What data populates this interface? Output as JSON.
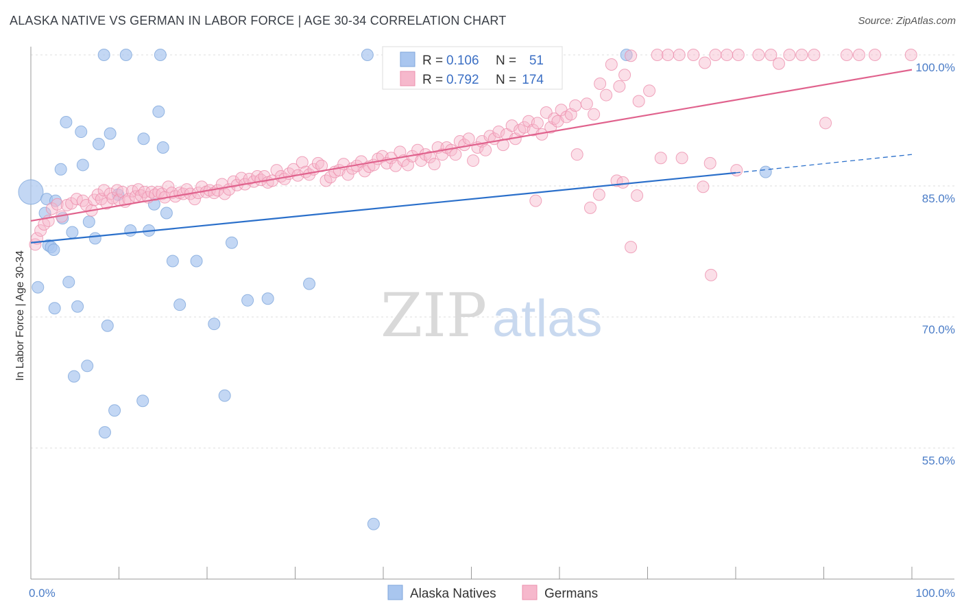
{
  "header": {
    "title": "ALASKA NATIVE VS GERMAN IN LABOR FORCE | AGE 30-34 CORRELATION CHART",
    "source": "Source: ZipAtlas.com"
  },
  "watermark": {
    "zip": "ZIP",
    "atlas": "atlas"
  },
  "chart_data": {
    "type": "scatter",
    "ylabel": "In Labor Force | Age 30-34",
    "xlim": [
      0,
      100
    ],
    "ylim": [
      41,
      101
    ],
    "x_tick_labels": [
      {
        "value": 0,
        "label": "0.0%"
      },
      {
        "value": 100,
        "label": "100.0%"
      }
    ],
    "y_tick_labels": [
      {
        "value": 100,
        "label": "100.0%"
      },
      {
        "value": 85,
        "label": "85.0%"
      },
      {
        "value": 70,
        "label": "70.0%"
      },
      {
        "value": 55,
        "label": "55.0%"
      }
    ],
    "grid": true,
    "legend_top": [
      {
        "r_label": "R =",
        "r_value": "0.106",
        "n_label": "N =",
        "n_value": "51",
        "color": "#a9c6ef"
      },
      {
        "r_label": "R =",
        "r_value": "0.792",
        "n_label": "N =",
        "n_value": "174",
        "color": "#f6b8cc"
      }
    ],
    "legend_bottom": [
      {
        "label": "Alaska Natives",
        "color": "#a9c6ef"
      },
      {
        "label": "Germans",
        "color": "#f6b8cc"
      }
    ],
    "series": [
      {
        "name": "Alaska Natives",
        "color": "#a9c6ef",
        "stroke": "#7ea6db",
        "trend": {
          "x0": 0,
          "y0": 78.5,
          "x1": 80,
          "y1": 86.5,
          "x_dash_end": 100,
          "y_dash_end": 88.6,
          "color": "#2a6fca"
        },
        "points": [
          [
            0,
            84.3
          ],
          [
            0.8,
            73.4
          ],
          [
            1.6,
            81.9
          ],
          [
            1.8,
            83.5
          ],
          [
            2,
            78.2
          ],
          [
            2.3,
            78
          ],
          [
            2.6,
            77.7
          ],
          [
            2.7,
            71
          ],
          [
            2.8,
            83.3
          ],
          [
            3.4,
            86.9
          ],
          [
            3.6,
            81.3
          ],
          [
            4,
            92.3
          ],
          [
            4.3,
            74
          ],
          [
            4.7,
            79.7
          ],
          [
            4.9,
            63.2
          ],
          [
            5.3,
            71.2
          ],
          [
            5.7,
            91.2
          ],
          [
            5.9,
            87.4
          ],
          [
            6.4,
            64.4
          ],
          [
            6.6,
            80.9
          ],
          [
            7.3,
            79
          ],
          [
            7.7,
            89.8
          ],
          [
            8.3,
            100
          ],
          [
            8.4,
            56.8
          ],
          [
            8.7,
            69
          ],
          [
            9,
            91
          ],
          [
            9.5,
            59.3
          ],
          [
            9.9,
            84
          ],
          [
            10.8,
            100
          ],
          [
            11.3,
            79.9
          ],
          [
            12.7,
            60.4
          ],
          [
            12.8,
            90.4
          ],
          [
            13.4,
            79.9
          ],
          [
            14,
            82.9
          ],
          [
            14.5,
            93.5
          ],
          [
            14.7,
            100
          ],
          [
            15,
            89.4
          ],
          [
            15.4,
            81.9
          ],
          [
            16.1,
            76.4
          ],
          [
            16.9,
            71.4
          ],
          [
            18.8,
            76.4
          ],
          [
            20.8,
            69.2
          ],
          [
            22,
            61
          ],
          [
            22.8,
            78.5
          ],
          [
            24.6,
            71.9
          ],
          [
            26.9,
            72.1
          ],
          [
            31.6,
            73.8
          ],
          [
            38.2,
            100
          ],
          [
            38.9,
            46.3
          ],
          [
            67.6,
            100
          ],
          [
            83.4,
            86.6
          ]
        ]
      },
      {
        "name": "Germans",
        "color": "#f6b8cc",
        "stroke": "#ec8fad",
        "trend": {
          "x0": 0,
          "y0": 81,
          "x1": 100,
          "y1": 98.3,
          "color": "#e0628d"
        },
        "points": [
          [
            0.5,
            78.3
          ],
          [
            0.7,
            79
          ],
          [
            1.1,
            79.9
          ],
          [
            1.5,
            80.6
          ],
          [
            2,
            81
          ],
          [
            2.4,
            82.4
          ],
          [
            3,
            82.9
          ],
          [
            3.5,
            81.5
          ],
          [
            4.1,
            82.8
          ],
          [
            4.6,
            83
          ],
          [
            5.2,
            83.5
          ],
          [
            5.9,
            83.3
          ],
          [
            6.3,
            82.8
          ],
          [
            6.9,
            82.2
          ],
          [
            7.2,
            83.4
          ],
          [
            7.6,
            84
          ],
          [
            8,
            83.5
          ],
          [
            8.3,
            84.5
          ],
          [
            8.6,
            83
          ],
          [
            9,
            84.1
          ],
          [
            9.3,
            83.6
          ],
          [
            9.8,
            84.5
          ],
          [
            10,
            83.4
          ],
          [
            10.4,
            84.3
          ],
          [
            10.7,
            83.2
          ],
          [
            11.1,
            83.5
          ],
          [
            11.5,
            84.4
          ],
          [
            11.9,
            83.8
          ],
          [
            12.2,
            84.6
          ],
          [
            12.5,
            83.9
          ],
          [
            12.9,
            84.3
          ],
          [
            13.3,
            83.7
          ],
          [
            13.7,
            84.3
          ],
          [
            14.1,
            84
          ],
          [
            14.5,
            84.3
          ],
          [
            14.9,
            84.1
          ],
          [
            15.2,
            83.7
          ],
          [
            15.6,
            84.9
          ],
          [
            16,
            84.2
          ],
          [
            16.4,
            83.8
          ],
          [
            16.9,
            84.2
          ],
          [
            17.3,
            84.1
          ],
          [
            17.7,
            84.6
          ],
          [
            18.1,
            84.1
          ],
          [
            18.6,
            83.5
          ],
          [
            19,
            84.2
          ],
          [
            19.4,
            84.9
          ],
          [
            19.9,
            84.3
          ],
          [
            20.3,
            84.5
          ],
          [
            20.8,
            84.2
          ],
          [
            21.2,
            84.5
          ],
          [
            21.7,
            85.2
          ],
          [
            22,
            84.1
          ],
          [
            22.5,
            84.6
          ],
          [
            23,
            85.5
          ],
          [
            23.4,
            85.1
          ],
          [
            23.9,
            85.9
          ],
          [
            24.3,
            85.2
          ],
          [
            24.8,
            85.8
          ],
          [
            25.3,
            85.5
          ],
          [
            25.7,
            86.1
          ],
          [
            26.1,
            85.7
          ],
          [
            26.5,
            86.1
          ],
          [
            26.9,
            85.4
          ],
          [
            27.4,
            85.6
          ],
          [
            27.9,
            86.8
          ],
          [
            28.4,
            86.1
          ],
          [
            28.8,
            85.8
          ],
          [
            29.3,
            86.4
          ],
          [
            29.8,
            86.9
          ],
          [
            30.3,
            86.2
          ],
          [
            30.8,
            87.7
          ],
          [
            31.2,
            86.6
          ],
          [
            31.6,
            86.3
          ],
          [
            32.1,
            86.9
          ],
          [
            32.6,
            87.6
          ],
          [
            33,
            87.3
          ],
          [
            33.5,
            85.6
          ],
          [
            34,
            86
          ],
          [
            34.5,
            86.6
          ],
          [
            35,
            86.8
          ],
          [
            35.5,
            87.5
          ],
          [
            36,
            86.3
          ],
          [
            36.5,
            87
          ],
          [
            37,
            87.3
          ],
          [
            37.5,
            87.8
          ],
          [
            37.9,
            86.7
          ],
          [
            38.4,
            87.2
          ],
          [
            38.9,
            87.4
          ],
          [
            39.4,
            88.1
          ],
          [
            39.9,
            88.4
          ],
          [
            40.4,
            87.6
          ],
          [
            40.9,
            88.2
          ],
          [
            41.4,
            87.3
          ],
          [
            41.9,
            88.9
          ],
          [
            42.3,
            87.9
          ],
          [
            42.8,
            87.4
          ],
          [
            43.3,
            88.4
          ],
          [
            43.9,
            89.1
          ],
          [
            44.3,
            87.9
          ],
          [
            44.8,
            88.6
          ],
          [
            45.3,
            88.3
          ],
          [
            45.8,
            87.5
          ],
          [
            46.2,
            89.4
          ],
          [
            46.7,
            88.6
          ],
          [
            47.2,
            89.4
          ],
          [
            47.7,
            89.1
          ],
          [
            48.2,
            88.6
          ],
          [
            48.7,
            90.1
          ],
          [
            49.2,
            89.7
          ],
          [
            49.7,
            90.4
          ],
          [
            50.2,
            87.9
          ],
          [
            50.7,
            89.4
          ],
          [
            51.2,
            90.1
          ],
          [
            51.6,
            89.1
          ],
          [
            52.1,
            90.7
          ],
          [
            52.6,
            90.4
          ],
          [
            53.1,
            91.2
          ],
          [
            53.6,
            89.7
          ],
          [
            54,
            90.9
          ],
          [
            54.6,
            91.9
          ],
          [
            55,
            90.4
          ],
          [
            55.5,
            91.4
          ],
          [
            56,
            91.7
          ],
          [
            56.5,
            92.4
          ],
          [
            57,
            91.4
          ],
          [
            57.5,
            92.2
          ],
          [
            58,
            90.9
          ],
          [
            58.5,
            93.4
          ],
          [
            59,
            91.7
          ],
          [
            59.4,
            92.7
          ],
          [
            59.8,
            92.4
          ],
          [
            60.2,
            93.7
          ],
          [
            60.8,
            92.9
          ],
          [
            61.3,
            93.2
          ],
          [
            61.8,
            94.2
          ],
          [
            63.1,
            94.4
          ],
          [
            63.9,
            93.2
          ],
          [
            64.6,
            96.7
          ],
          [
            65.3,
            95.4
          ],
          [
            65.9,
            98.9
          ],
          [
            66.8,
            96.4
          ],
          [
            67.4,
            97.7
          ],
          [
            68.1,
            99.9
          ],
          [
            69,
            94.7
          ],
          [
            70.2,
            95.9
          ],
          [
            71.1,
            100
          ],
          [
            72.3,
            100
          ],
          [
            73.6,
            100
          ],
          [
            75.2,
            100
          ],
          [
            76.5,
            99.1
          ],
          [
            77.7,
            100
          ],
          [
            79,
            100
          ],
          [
            80.3,
            100
          ],
          [
            82.6,
            100
          ],
          [
            84,
            100
          ],
          [
            84.9,
            99
          ],
          [
            86.1,
            100
          ],
          [
            87.5,
            100
          ],
          [
            88.9,
            100
          ],
          [
            90.2,
            92.2
          ],
          [
            92.6,
            100
          ],
          [
            94,
            100
          ],
          [
            95.8,
            100
          ],
          [
            99.9,
            100
          ],
          [
            64.5,
            84
          ],
          [
            66.5,
            85.6
          ],
          [
            67.2,
            85.4
          ],
          [
            68.8,
            83.9
          ],
          [
            71.5,
            88.2
          ],
          [
            76.3,
            84.9
          ],
          [
            77.2,
            74.8
          ],
          [
            80.1,
            86.8
          ],
          [
            68.1,
            78
          ],
          [
            63.5,
            82.5
          ],
          [
            57.3,
            83.3
          ],
          [
            62,
            88.6
          ],
          [
            73.9,
            88.2
          ],
          [
            77.1,
            87.6
          ]
        ]
      }
    ]
  }
}
